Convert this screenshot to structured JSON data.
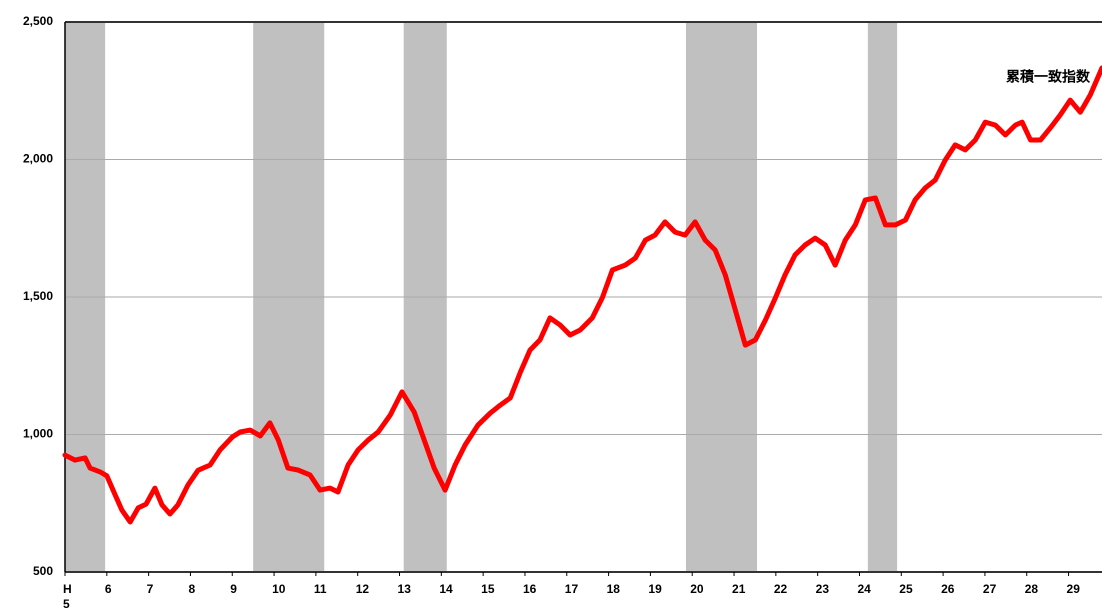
{
  "chart_data": {
    "type": "line",
    "annotation": "累積一致指数",
    "x": [
      5.0,
      5.24,
      5.48,
      5.6,
      5.84,
      6.0,
      6.2,
      6.36,
      6.56,
      6.75,
      6.94,
      7.15,
      7.32,
      7.51,
      7.7,
      7.94,
      8.18,
      8.47,
      8.71,
      9.0,
      9.19,
      9.43,
      9.67,
      9.9,
      10.1,
      10.33,
      10.57,
      10.86,
      11.1,
      11.34,
      11.53,
      11.77,
      12.01,
      12.25,
      12.49,
      12.78,
      13.06,
      13.35,
      13.59,
      13.83,
      14.09,
      14.33,
      14.57,
      14.88,
      15.17,
      15.41,
      15.65,
      15.89,
      16.12,
      16.36,
      16.6,
      16.84,
      17.08,
      17.32,
      17.61,
      17.85,
      18.09,
      18.4,
      18.64,
      18.88,
      19.11,
      19.35,
      19.59,
      19.83,
      20.07,
      20.31,
      20.55,
      20.79,
      21.03,
      21.27,
      21.51,
      21.75,
      21.99,
      22.22,
      22.46,
      22.7,
      22.94,
      23.18,
      23.42,
      23.66,
      23.9,
      24.14,
      24.38,
      24.62,
      24.86,
      25.1,
      25.33,
      25.57,
      25.81,
      26.05,
      26.29,
      26.53,
      26.77,
      27.01,
      27.25,
      27.49,
      27.73,
      27.89,
      28.09,
      28.33,
      28.56,
      28.8,
      29.04,
      29.28,
      29.52,
      29.8
    ],
    "values": [
      925,
      907,
      915,
      878,
      864,
      850,
      780,
      725,
      682,
      733,
      747,
      805,
      744,
      711,
      744,
      816,
      870,
      889,
      944,
      991,
      1009,
      1016,
      995,
      1042,
      980,
      878,
      871,
      853,
      798,
      805,
      791,
      889,
      944,
      980,
      1009,
      1071,
      1155,
      1082,
      980,
      878,
      798,
      889,
      962,
      1035,
      1078,
      1107,
      1133,
      1227,
      1307,
      1344,
      1424,
      1398,
      1362,
      1380,
      1424,
      1497,
      1598,
      1616,
      1642,
      1707,
      1725,
      1773,
      1736,
      1725,
      1773,
      1707,
      1671,
      1580,
      1453,
      1325,
      1344,
      1416,
      1497,
      1580,
      1653,
      1689,
      1714,
      1689,
      1616,
      1707,
      1762,
      1853,
      1860,
      1762,
      1762,
      1780,
      1853,
      1896,
      1925,
      1998,
      2053,
      2035,
      2071,
      2136,
      2125,
      2089,
      2125,
      2136,
      2071,
      2071,
      2114,
      2162,
      2216,
      2172,
      2235,
      2333
    ],
    "color": "#ff0000",
    "shaded_periods": [
      [
        5.0,
        5.96
      ],
      [
        9.5,
        11.2
      ],
      [
        13.1,
        14.13
      ],
      [
        19.85,
        21.55
      ],
      [
        24.2,
        24.9
      ]
    ],
    "shade_color": "#c0c0c0",
    "xlim": [
      5,
      29.8
    ],
    "xticks": [
      {
        "value": 5,
        "label": "H\n5"
      },
      6,
      7,
      8,
      9,
      10,
      11,
      12,
      13,
      14,
      15,
      16,
      17,
      18,
      19,
      20,
      21,
      22,
      23,
      24,
      25,
      26,
      27,
      28,
      29
    ],
    "ylim": [
      500,
      2500
    ],
    "yticks": [
      {
        "value": 500,
        "label": "500"
      },
      {
        "value": 1000,
        "label": "1,000"
      },
      {
        "value": 1500,
        "label": "1,500"
      },
      {
        "value": 2000,
        "label": "2,000"
      },
      {
        "value": 2500,
        "label": "2,500"
      }
    ],
    "grid": true
  }
}
